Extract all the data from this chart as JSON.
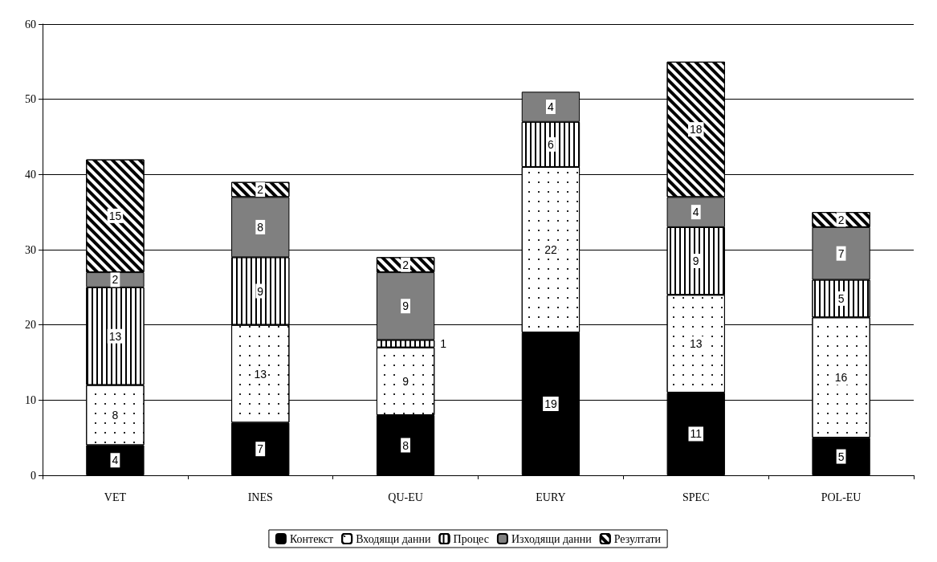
{
  "chart_data": {
    "type": "bar",
    "stacked": true,
    "categories": [
      "VET",
      "INES",
      "QU-EU",
      "EURY",
      "SPEC",
      "POL-EU"
    ],
    "series": [
      {
        "name": "Контекст",
        "color": "#000000",
        "values": [
          4,
          7,
          8,
          19,
          11,
          5
        ]
      },
      {
        "name": "Входящи данни",
        "color": "#ffffff",
        "values": [
          8,
          13,
          9,
          22,
          13,
          16
        ]
      },
      {
        "name": "Процес",
        "color": "#ffffff",
        "values": [
          13,
          9,
          1,
          6,
          9,
          5
        ]
      },
      {
        "name": "Изходящи данни",
        "color": "#808080",
        "values": [
          2,
          8,
          9,
          4,
          4,
          7
        ]
      },
      {
        "name": "Резултати",
        "color": "#ffffff",
        "values": [
          15,
          2,
          2,
          null,
          18,
          2
        ]
      }
    ],
    "ylim": [
      0,
      60
    ],
    "yticks": [
      0,
      10,
      20,
      30,
      40,
      50,
      60
    ],
    "grid": "y",
    "legend": "bottom",
    "data_labels": true
  }
}
